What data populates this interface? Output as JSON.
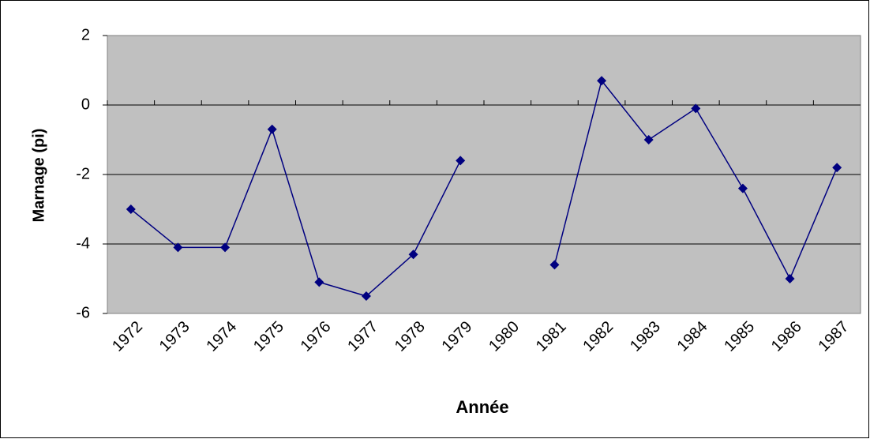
{
  "chart_data": {
    "type": "line",
    "x_label": "Année",
    "y_label": "Marnage (pi)",
    "categories": [
      "1972",
      "1973",
      "1974",
      "1975",
      "1976",
      "1977",
      "1978",
      "1979",
      "1980",
      "1981",
      "1982",
      "1983",
      "1984",
      "1985",
      "1986",
      "1987"
    ],
    "series": [
      {
        "name": "Marnage",
        "color": "#000080",
        "values": [
          -3.0,
          -4.1,
          -4.1,
          -0.7,
          -5.1,
          -5.5,
          -4.3,
          -1.6,
          null,
          -4.6,
          0.7,
          -1.0,
          -0.1,
          -2.4,
          -5.0,
          -1.8
        ]
      }
    ],
    "ylim": [
      -6,
      2
    ],
    "yticks": [
      -6,
      -4,
      -2,
      0,
      2
    ],
    "grid": true,
    "plot_background": "#c0c0c0"
  }
}
